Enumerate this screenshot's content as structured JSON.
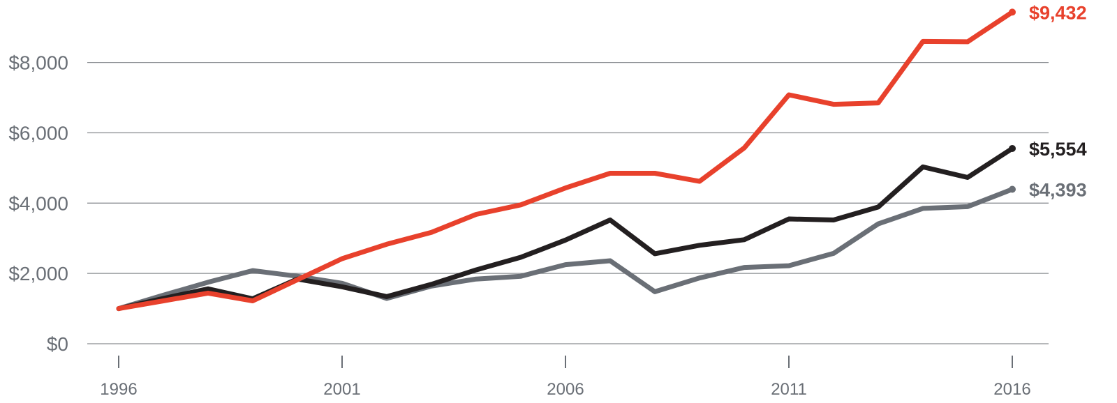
{
  "chart_data": {
    "type": "line",
    "title": "",
    "xlabel": "",
    "ylabel": "",
    "x": [
      1996,
      1997,
      1998,
      1999,
      2000,
      2001,
      2002,
      2003,
      2004,
      2005,
      2006,
      2007,
      2008,
      2009,
      2010,
      2011,
      2012,
      2013,
      2014,
      2015,
      2016
    ],
    "xlim": [
      1996,
      2016
    ],
    "ylim": [
      0,
      9500
    ],
    "grid": true,
    "legend": "none",
    "x_ticks": [
      {
        "value": 1996,
        "label": "1996"
      },
      {
        "value": 2001,
        "label": "2001"
      },
      {
        "value": 2006,
        "label": "2006"
      },
      {
        "value": 2011,
        "label": "2011"
      },
      {
        "value": 2016,
        "label": "2016"
      }
    ],
    "y_ticks": [
      {
        "value": 0,
        "label": "$0"
      },
      {
        "value": 2000,
        "label": "$2,000"
      },
      {
        "value": 4000,
        "label": "$4,000"
      },
      {
        "value": 6000,
        "label": "$6,000"
      },
      {
        "value": 8000,
        "label": "$8,000"
      }
    ],
    "series": [
      {
        "color": "#6a6f76",
        "end_label": "$4,393",
        "values": [
          1000,
          1380,
          1750,
          2080,
          1920,
          1720,
          1290,
          1640,
          1840,
          1920,
          2250,
          2360,
          1480,
          1870,
          2170,
          2220,
          2570,
          3410,
          3850,
          3900,
          4393
        ]
      },
      {
        "color": "#231f20",
        "end_label": "$5,554",
        "values": [
          1000,
          1290,
          1560,
          1280,
          1840,
          1620,
          1340,
          1690,
          2100,
          2460,
          2950,
          3520,
          2560,
          2800,
          2960,
          3550,
          3520,
          3890,
          5030,
          4730,
          5554
        ]
      },
      {
        "color": "#e8412c",
        "end_label": "$9,432",
        "values": [
          1000,
          1220,
          1440,
          1220,
          1820,
          2420,
          2830,
          3170,
          3680,
          3950,
          4430,
          4850,
          4850,
          4620,
          5570,
          7080,
          6810,
          6850,
          8600,
          8590,
          9432
        ]
      }
    ]
  }
}
